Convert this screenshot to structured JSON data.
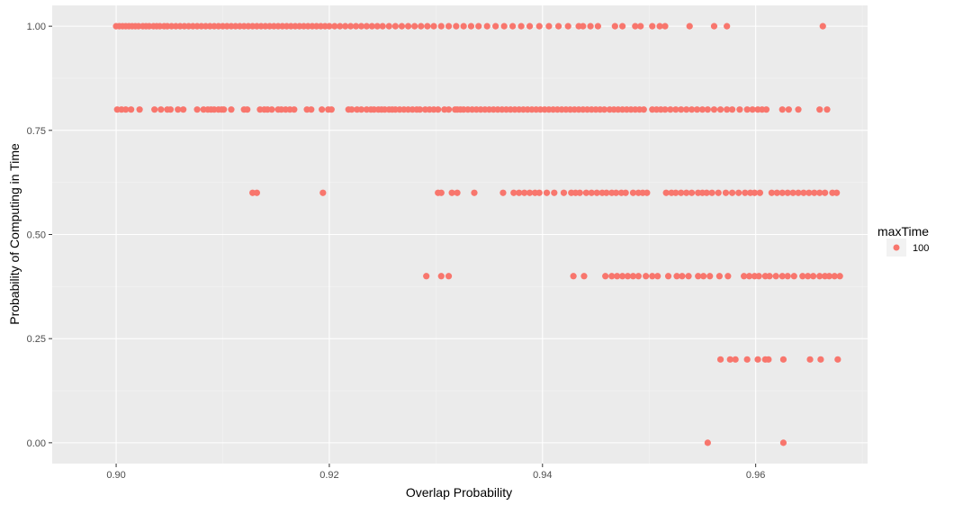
{
  "chart_data": {
    "type": "scatter",
    "title": "",
    "xlabel": "Overlap Probability",
    "ylabel": "Probability of Computing in Time",
    "xlim": [
      0.894,
      0.9705
    ],
    "ylim": [
      -0.05,
      1.05
    ],
    "x_ticks": [
      0.9,
      0.92,
      0.94,
      0.96
    ],
    "x_tick_labels": [
      "0.90",
      "0.92",
      "0.94",
      "0.96"
    ],
    "y_ticks": [
      0.0,
      0.25,
      0.5,
      0.75,
      1.0
    ],
    "y_tick_labels": [
      "0.00",
      "0.25",
      "0.50",
      "0.75",
      "1.00"
    ],
    "grid": true,
    "legend_position": "right",
    "legend": {
      "title": "maxTime",
      "entries": [
        {
          "label": "100",
          "color": "#F8766D"
        }
      ]
    },
    "colors": {
      "point": "#F8766D",
      "panel": "#EBEBEB",
      "grid_major": "#FFFFFF",
      "grid_minor": "#F4F4F4"
    },
    "series": [
      {
        "name": "100",
        "color": "#F8766D",
        "points": [
          {
            "y": 1.0,
            "x": [
              0.9,
              0.9003,
              0.9006,
              0.9009,
              0.9012,
              0.9015,
              0.9018,
              0.9021,
              0.9025,
              0.9028,
              0.9031,
              0.9035,
              0.9038,
              0.9041,
              0.9045,
              0.9048,
              0.9052,
              0.9056,
              0.906,
              0.9064,
              0.9068,
              0.9072,
              0.9076,
              0.908,
              0.9084,
              0.9088,
              0.9092,
              0.9096,
              0.91,
              0.9104,
              0.9108,
              0.9112,
              0.9116,
              0.912,
              0.9124,
              0.9128,
              0.9132,
              0.9136,
              0.914,
              0.9144,
              0.9148,
              0.9152,
              0.9156,
              0.916,
              0.9164,
              0.9168,
              0.9172,
              0.9176,
              0.918,
              0.9184,
              0.9188,
              0.9192,
              0.9196,
              0.92,
              0.9205,
              0.921,
              0.9215,
              0.922,
              0.9225,
              0.923,
              0.9235,
              0.924,
              0.9245,
              0.925,
              0.9256,
              0.9262,
              0.9268,
              0.9274,
              0.928,
              0.9286,
              0.9292,
              0.9298,
              0.9305,
              0.9312,
              0.9319,
              0.9326,
              0.9333,
              0.934,
              0.9348,
              0.9356,
              0.9364,
              0.9372,
              0.938,
              0.9388,
              0.9397,
              0.9406,
              0.9415,
              0.9424,
              0.9434,
              0.9438,
              0.9445,
              0.9452,
              0.9468,
              0.9475,
              0.9487,
              0.9492,
              0.9503,
              0.951,
              0.9515,
              0.9538,
              0.9561,
              0.9573,
              0.9663
            ]
          },
          {
            "y": 0.8,
            "x": [
              0.9001,
              0.9005,
              0.9009,
              0.9014,
              0.9022,
              0.9036,
              0.9042,
              0.9048,
              0.9051,
              0.9058,
              0.9063,
              0.9076,
              0.9082,
              0.9086,
              0.9089,
              0.9092,
              0.9096,
              0.9099,
              0.9101,
              0.9108,
              0.912,
              0.9123,
              0.9135,
              0.9139,
              0.9142,
              0.9146,
              0.9152,
              0.9155,
              0.9159,
              0.9163,
              0.9167,
              0.9179,
              0.9183,
              0.9193,
              0.9199,
              0.9202,
              0.9218,
              0.9221,
              0.9226,
              0.923,
              0.9235,
              0.9239,
              0.9242,
              0.9246,
              0.9249,
              0.9252,
              0.9256,
              0.9259,
              0.9262,
              0.9266,
              0.927,
              0.9274,
              0.9278,
              0.9282,
              0.9285,
              0.929,
              0.9294,
              0.9298,
              0.9302,
              0.9308,
              0.9312,
              0.9318,
              0.932,
              0.9323,
              0.9326,
              0.933,
              0.9334,
              0.9338,
              0.9342,
              0.9346,
              0.935,
              0.9354,
              0.9358,
              0.9362,
              0.9366,
              0.937,
              0.9374,
              0.9378,
              0.9382,
              0.9386,
              0.939,
              0.9394,
              0.9398,
              0.9402,
              0.9406,
              0.941,
              0.9414,
              0.9418,
              0.9422,
              0.9426,
              0.943,
              0.9434,
              0.9438,
              0.9442,
              0.9446,
              0.945,
              0.9454,
              0.9458,
              0.9463,
              0.9467,
              0.9471,
              0.9475,
              0.9479,
              0.9483,
              0.9487,
              0.9491,
              0.9495,
              0.9503,
              0.9507,
              0.9511,
              0.9515,
              0.952,
              0.9525,
              0.953,
              0.9535,
              0.954,
              0.9545,
              0.955,
              0.9555,
              0.9561,
              0.9567,
              0.9573,
              0.9578,
              0.9585,
              0.9592,
              0.9597,
              0.9602,
              0.9606,
              0.961,
              0.9625,
              0.9631,
              0.964,
              0.966,
              0.9667
            ]
          },
          {
            "y": 0.6,
            "x": [
              0.9128,
              0.9132,
              0.9194,
              0.9302,
              0.9305,
              0.9315,
              0.932,
              0.9336,
              0.9363,
              0.9373,
              0.9378,
              0.9383,
              0.9388,
              0.9393,
              0.9397,
              0.9404,
              0.9411,
              0.942,
              0.9427,
              0.9431,
              0.9435,
              0.9441,
              0.9446,
              0.9451,
              0.9456,
              0.946,
              0.9465,
              0.9469,
              0.9474,
              0.9478,
              0.9485,
              0.949,
              0.9494,
              0.9498,
              0.9516,
              0.9521,
              0.9525,
              0.953,
              0.9535,
              0.954,
              0.9546,
              0.955,
              0.9554,
              0.9559,
              0.9565,
              0.9572,
              0.9578,
              0.9584,
              0.959,
              0.9595,
              0.9599,
              0.9604,
              0.9615,
              0.962,
              0.9625,
              0.963,
              0.9635,
              0.964,
              0.9645,
              0.965,
              0.9655,
              0.966,
              0.9665,
              0.9672,
              0.9676
            ]
          },
          {
            "y": 0.4,
            "x": [
              0.9291,
              0.9305,
              0.9312,
              0.9429,
              0.9439,
              0.9459,
              0.9465,
              0.947,
              0.9475,
              0.948,
              0.9485,
              0.949,
              0.9497,
              0.9503,
              0.9508,
              0.9518,
              0.9526,
              0.9531,
              0.9537,
              0.9546,
              0.9551,
              0.9557,
              0.9566,
              0.9574,
              0.9589,
              0.9594,
              0.9599,
              0.9603,
              0.9609,
              0.9613,
              0.9619,
              0.9625,
              0.963,
              0.9636,
              0.9644,
              0.9649,
              0.9654,
              0.966,
              0.9665,
              0.9669,
              0.9674,
              0.9679
            ]
          },
          {
            "y": 0.2,
            "x": [
              0.9567,
              0.9576,
              0.9581,
              0.9592,
              0.9602,
              0.9609,
              0.9612,
              0.9626,
              0.9651,
              0.9661,
              0.9677
            ]
          },
          {
            "y": 0.0,
            "x": [
              0.9555,
              0.9626
            ]
          }
        ]
      }
    ]
  }
}
